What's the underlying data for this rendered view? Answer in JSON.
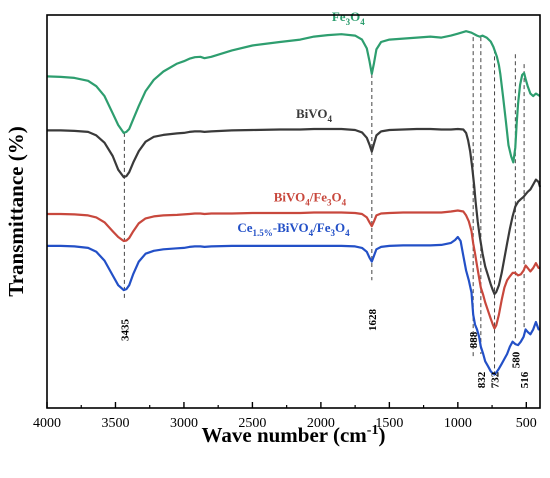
{
  "chart_data": {
    "type": "line",
    "title": "",
    "xlabel": "Wave number (cm",
    "xlabel_sup": "-1",
    "xlabel_tail": ")",
    "ylabel": "Transmittance (%)",
    "xlim": [
      4000,
      400
    ],
    "x_reversed": true,
    "x_ticks": [
      4000,
      3500,
      3000,
      2500,
      2000,
      1500,
      1000,
      500
    ],
    "y_ticks_shown": false,
    "grid": false,
    "legend": "inline-labels",
    "series": [
      {
        "name": "Fe3O4",
        "label_parts": [
          [
            "Fe",
            ""
          ],
          [
            "3",
            "sub"
          ],
          [
            "O",
            ""
          ],
          [
            "4",
            "sub"
          ]
        ],
        "color": "#2e9e6f",
        "x": [
          4000,
          3900,
          3800,
          3700,
          3640,
          3580,
          3520,
          3480,
          3440,
          3420,
          3400,
          3370,
          3330,
          3280,
          3220,
          3150,
          3050,
          3000,
          2960,
          2920,
          2880,
          2850,
          2800,
          2650,
          2500,
          2300,
          2150,
          2050,
          1950,
          1850,
          1750,
          1700,
          1665,
          1645,
          1628,
          1612,
          1595,
          1560,
          1500,
          1400,
          1300,
          1200,
          1120,
          1050,
          1000,
          940,
          900,
          860,
          840,
          820,
          790,
          760,
          740,
          715,
          700,
          690,
          670,
          650,
          630,
          610,
          595,
          580,
          570,
          560,
          545,
          530,
          516,
          505,
          490,
          470,
          450,
          430,
          400
        ],
        "y": [
          67.5,
          67.4,
          67.2,
          66.6,
          65.5,
          63.5,
          60,
          57.6,
          56.0,
          56.2,
          56.8,
          58.8,
          61.5,
          64.5,
          66.8,
          68.5,
          70.1,
          70.6,
          71.1,
          71.4,
          71.5,
          71.2,
          71.5,
          72.8,
          73.8,
          74.5,
          75.0,
          75.6,
          75.9,
          76.1,
          75.8,
          75.0,
          73.2,
          70.6,
          68.0,
          70.2,
          73.0,
          74.5,
          75.0,
          75.2,
          75.4,
          75.6,
          75.4,
          75.8,
          76.2,
          76.7,
          76.4,
          75.8,
          75.6,
          75.8,
          75.4,
          74.6,
          73.5,
          71.5,
          69.8,
          68.0,
          63.5,
          58.5,
          53.5,
          51.2,
          50.0,
          53.0,
          58.0,
          62.0,
          65.8,
          67.8,
          68.2,
          67.0,
          65.5,
          64.0,
          63.5,
          64.0,
          63.5
        ]
      },
      {
        "name": "BiVO4",
        "label_parts": [
          [
            "BiVO",
            ""
          ],
          [
            "4",
            "sub"
          ]
        ],
        "color": "#3a3a3a",
        "x": [
          4000,
          3900,
          3800,
          3700,
          3640,
          3580,
          3520,
          3480,
          3440,
          3420,
          3400,
          3370,
          3330,
          3280,
          3220,
          3150,
          3050,
          3000,
          2960,
          2920,
          2880,
          2850,
          2800,
          2650,
          2500,
          2300,
          2150,
          2050,
          1950,
          1850,
          1750,
          1700,
          1665,
          1645,
          1628,
          1612,
          1595,
          1560,
          1500,
          1400,
          1300,
          1200,
          1120,
          1050,
          1000,
          960,
          940,
          925,
          910,
          895,
          880,
          870,
          855,
          840,
          820,
          800,
          780,
          760,
          745,
          732,
          720,
          700,
          680,
          660,
          640,
          620,
          600,
          580,
          560,
          540,
          520,
          505,
          490,
          470,
          450,
          430,
          410,
          400
        ],
        "y": [
          56.5,
          56.5,
          56.4,
          56.2,
          55.5,
          54.0,
          51.3,
          48.5,
          47.0,
          47.2,
          48.0,
          50.0,
          52.3,
          54.2,
          55.2,
          55.6,
          55.9,
          56.0,
          56.2,
          56.3,
          56.3,
          56.2,
          56.3,
          56.5,
          56.6,
          56.7,
          56.7,
          56.8,
          56.8,
          56.8,
          56.6,
          56.1,
          55.0,
          53.6,
          52.2,
          53.8,
          55.5,
          56.3,
          56.6,
          56.7,
          56.8,
          56.8,
          56.7,
          56.7,
          56.8,
          56.7,
          56.0,
          54.5,
          52.2,
          49.0,
          45.0,
          42.0,
          38.0,
          35.0,
          31.5,
          28.8,
          27.0,
          25.2,
          24.0,
          23.2,
          23.6,
          25.0,
          27.5,
          30.5,
          33.5,
          36.5,
          39.0,
          41.0,
          42.0,
          42.5,
          43.0,
          43.5,
          44.0,
          44.5,
          45.5,
          46.5,
          46.0,
          45.0
        ]
      },
      {
        "name": "BiVO4/Fe3O4",
        "label_parts": [
          [
            "BiVO",
            ""
          ],
          [
            "4",
            "sub"
          ],
          [
            "/Fe",
            ""
          ],
          [
            "3",
            "sub"
          ],
          [
            "O",
            ""
          ],
          [
            "4",
            "sub"
          ]
        ],
        "color": "#c8483d",
        "x": [
          4000,
          3900,
          3800,
          3700,
          3640,
          3580,
          3520,
          3480,
          3440,
          3420,
          3400,
          3370,
          3330,
          3280,
          3220,
          3150,
          3050,
          3000,
          2960,
          2920,
          2880,
          2850,
          2800,
          2650,
          2500,
          2300,
          2150,
          2050,
          1950,
          1850,
          1750,
          1700,
          1665,
          1645,
          1628,
          1612,
          1595,
          1560,
          1500,
          1400,
          1300,
          1200,
          1120,
          1050,
          1000,
          960,
          940,
          920,
          900,
          888,
          875,
          860,
          845,
          832,
          815,
          800,
          780,
          760,
          745,
          732,
          720,
          700,
          680,
          660,
          640,
          620,
          600,
          580,
          560,
          540,
          520,
          505,
          490,
          470,
          450,
          430,
          410,
          400
        ],
        "y": [
          39.5,
          39.5,
          39.4,
          39.2,
          38.8,
          37.8,
          36.0,
          34.8,
          34.0,
          34.1,
          34.6,
          36.0,
          37.6,
          38.6,
          39.0,
          39.2,
          39.3,
          39.4,
          39.5,
          39.6,
          39.6,
          39.5,
          39.6,
          39.6,
          39.7,
          39.7,
          39.7,
          39.8,
          39.8,
          39.8,
          39.7,
          39.5,
          38.8,
          37.8,
          37.0,
          38.0,
          39.2,
          39.6,
          39.7,
          39.8,
          39.8,
          39.8,
          39.8,
          40.0,
          40.2,
          40.0,
          39.2,
          38.0,
          36.0,
          33.5,
          31.5,
          29.0,
          26.5,
          24.5,
          23.0,
          21.5,
          19.8,
          18.2,
          17.0,
          16.2,
          16.8,
          19.0,
          22.0,
          24.5,
          26.0,
          26.8,
          27.5,
          27.5,
          27.0,
          27.2,
          28.0,
          29.0,
          28.5,
          27.8,
          28.5,
          29.5,
          28.5,
          28.5
        ]
      },
      {
        "name": "Ce1.5%-BiVO4/Fe3O4",
        "label_parts": [
          [
            "Ce",
            ""
          ],
          [
            "1.5%",
            "sub"
          ],
          [
            "-BiVO",
            ""
          ],
          [
            "4",
            "sub"
          ],
          [
            "/Fe",
            ""
          ],
          [
            "3",
            "sub"
          ],
          [
            "O",
            ""
          ],
          [
            "4",
            "sub"
          ]
        ],
        "color": "#2350c7",
        "x": [
          4000,
          3900,
          3800,
          3700,
          3640,
          3580,
          3520,
          3480,
          3440,
          3420,
          3400,
          3370,
          3330,
          3280,
          3220,
          3150,
          3050,
          3000,
          2960,
          2920,
          2880,
          2850,
          2800,
          2650,
          2500,
          2300,
          2150,
          2050,
          1950,
          1850,
          1750,
          1700,
          1665,
          1645,
          1628,
          1612,
          1595,
          1560,
          1500,
          1400,
          1300,
          1200,
          1120,
          1050,
          1020,
          1000,
          980,
          960,
          940,
          920,
          900,
          888,
          875,
          860,
          845,
          832,
          815,
          800,
          780,
          760,
          745,
          732,
          720,
          700,
          680,
          660,
          640,
          620,
          600,
          580,
          560,
          540,
          520,
          505,
          490,
          470,
          450,
          430,
          410,
          400
        ],
        "y": [
          33.0,
          33.0,
          32.9,
          32.6,
          31.8,
          30.0,
          27.0,
          25.0,
          24.0,
          24.2,
          25.0,
          27.3,
          29.8,
          31.4,
          32.0,
          32.3,
          32.5,
          32.6,
          32.8,
          32.9,
          32.9,
          32.8,
          32.9,
          33.0,
          33.0,
          33.0,
          33.0,
          33.0,
          33.0,
          33.0,
          32.9,
          32.6,
          31.8,
          30.6,
          29.8,
          31.0,
          32.3,
          32.8,
          33.0,
          33.1,
          33.1,
          33.1,
          33.2,
          33.6,
          34.2,
          34.8,
          34.0,
          31.0,
          28.0,
          26.0,
          23.5,
          19.0,
          17.0,
          16.0,
          14.5,
          12.5,
          11.0,
          9.5,
          8.5,
          7.5,
          7.0,
          6.8,
          7.2,
          8.0,
          9.0,
          10.0,
          11.0,
          12.5,
          13.5,
          13.0,
          12.8,
          13.5,
          14.5,
          16.0,
          15.5,
          15.0,
          16.0,
          17.5,
          16.0,
          16.0
        ]
      }
    ],
    "peak_labels": [
      "3435",
      "1628",
      "888",
      "832",
      "732",
      "580",
      "516"
    ],
    "peak_positions": [
      3435,
      1628,
      888,
      832,
      732,
      580,
      516
    ]
  }
}
